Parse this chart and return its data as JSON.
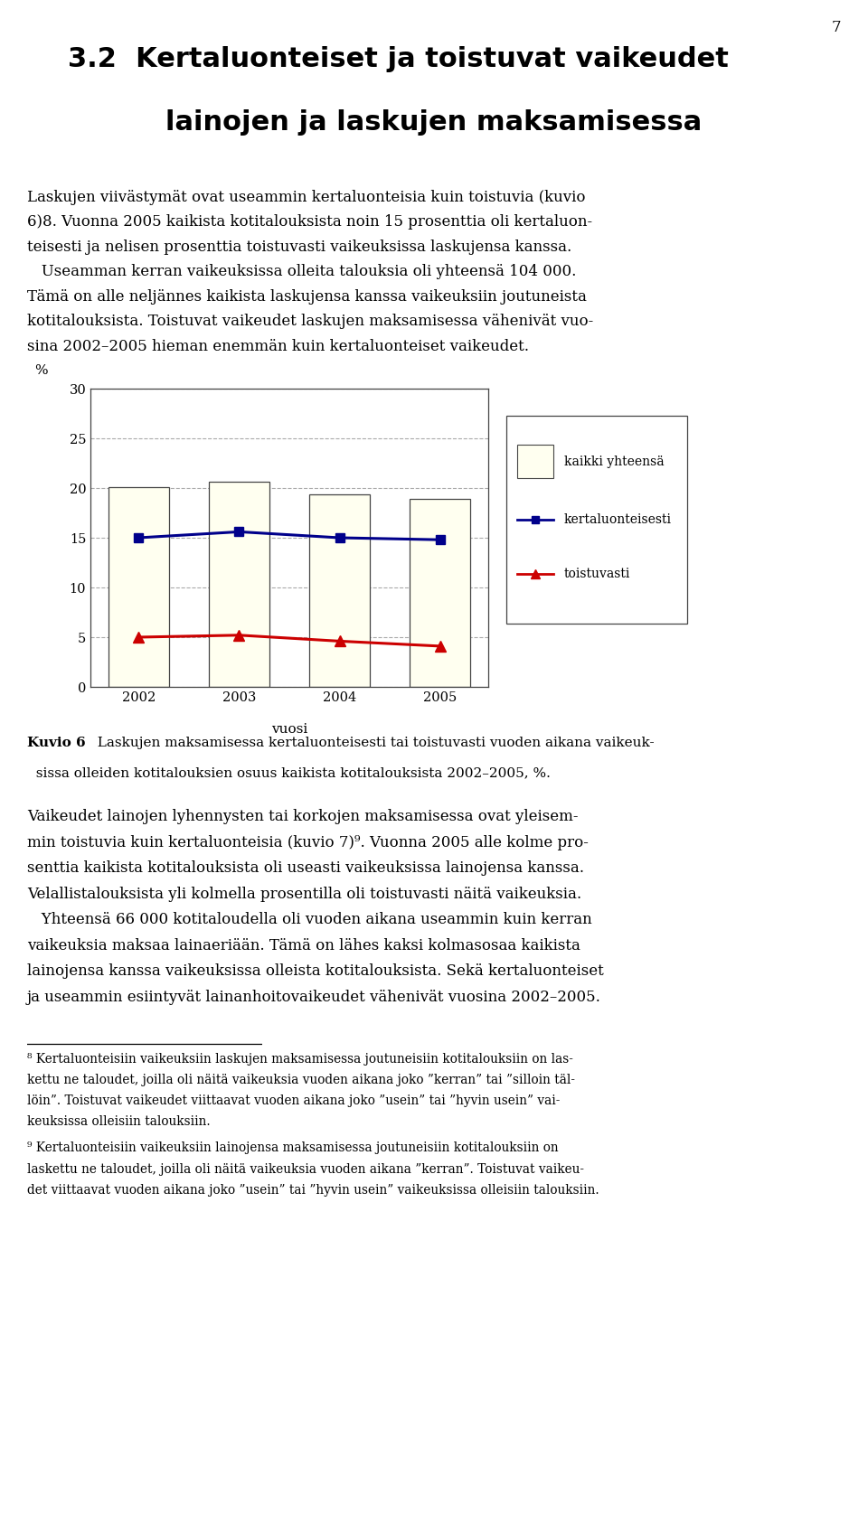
{
  "years": [
    2002,
    2003,
    2004,
    2005
  ],
  "bar_values": [
    20.1,
    20.6,
    19.4,
    18.9
  ],
  "line_kerta": [
    15.0,
    15.6,
    15.0,
    14.8
  ],
  "line_toistuva": [
    5.0,
    5.2,
    4.6,
    4.1
  ],
  "bar_color": "#fffff0",
  "bar_edgecolor": "#444444",
  "line_kerta_color": "#00008B",
  "line_toistuva_color": "#CC0000",
  "ylim": [
    0,
    30
  ],
  "yticks": [
    0,
    5,
    10,
    15,
    20,
    25,
    30
  ],
  "ylabel": "%",
  "xlabel": "vuosi",
  "legend_labels": [
    "kaikki yhteensä",
    "kertaluonteisesti",
    "toistuvasti"
  ],
  "page_number": "7",
  "heading_line1": "3.2  Kertaluonteiset ja toistuvat vaikeudet",
  "heading_line2": "lainojen ja laskujen maksamisessa",
  "text_block1": [
    "Laskujen viivästymät ovat useammin kertaluonteisia kuin toistuvia (kuvio",
    "6)8. Vuonna 2005 kaikista kotitalouksista noin 15 prosenttia oli kertaluon-",
    "teisesti ja nelisen prosenttia toistuvasti vaikeuksissa laskujensa kanssa.",
    "   Useamman kerran vaikeuksissa olleita talouksia oli yhteensä 104 000.",
    "Tämä on alle neljännes kaikista laskujensa kanssa vaikeuksiin joutuneista",
    "kotitalouksista. Toistuvat vaikeudet laskujen maksamisessa vähenivät vuo-",
    "sina 2002–2005 hieman enemmän kuin kertaluonteiset vaikeudet."
  ],
  "caption_bold": "Kuvio 6",
  "caption_text": "  Laskujen maksamisessa kertaluonteisesti tai toistuvasti vuoden aikana vaikeuk-\n  sissa olleiden kotitalouksien osuus kaikista kotitalouksista 2002–2005, %.",
  "text_block2": [
    "Vaikeudet lainojen lyhennysten tai korkojen maksamisessa ovat yleisem-",
    "min toistuvia kuin kertaluonteisia (kuvio 7)⁹. Vuonna 2005 alle kolme pro-",
    "senttia kaikista kotitalouksista oli useasti vaikeuksissa lainojensa kanssa.",
    "Velallistalouksista yli kolmella prosentilla oli toistuvasti näitä vaikeuksia.",
    "   Yhteensä 66 000 kotitaloudella oli vuoden aikana useammin kuin kerran",
    "vaikeuksia maksaa lainaeriään. Tämä on lähes kaksi kolmasosaa kaikista",
    "lainojensa kanssa vaikeuksissa olleista kotitalouksista. Sekä kertaluonteiset",
    "ja useammin esiintyvät lainanhoitovaikeudet vähenivät vuosina 2002–2005."
  ],
  "footnote1": [
    "⁸ Kertaluonteisiin vaikeuksiin laskujen maksamisessa joutuneisiin kotitalouksiin on las-",
    "kettu ne taloudet, joilla oli näitä vaikeuksia vuoden aikana joko ”kerran” tai ”silloin täl-",
    "löin”. Toistuvat vaikeudet viittaavat vuoden aikana joko ”usein” tai ”hyvin usein” vai-",
    "keuksissa olleisiin talouksiin."
  ],
  "footnote2": [
    "⁹ Kertaluonteisiin vaikeuksiin lainojensa maksamisessa joutuneisiin kotitalouksiin on",
    "laskettu ne taloudet, joilla oli näitä vaikeuksia vuoden aikana ”kerran”. Toistuvat vaikeu-",
    "det viittaavat vuoden aikana joko ”usein” tai ”hyvin usein” vaikeuksissa olleisiin talouksiin."
  ]
}
